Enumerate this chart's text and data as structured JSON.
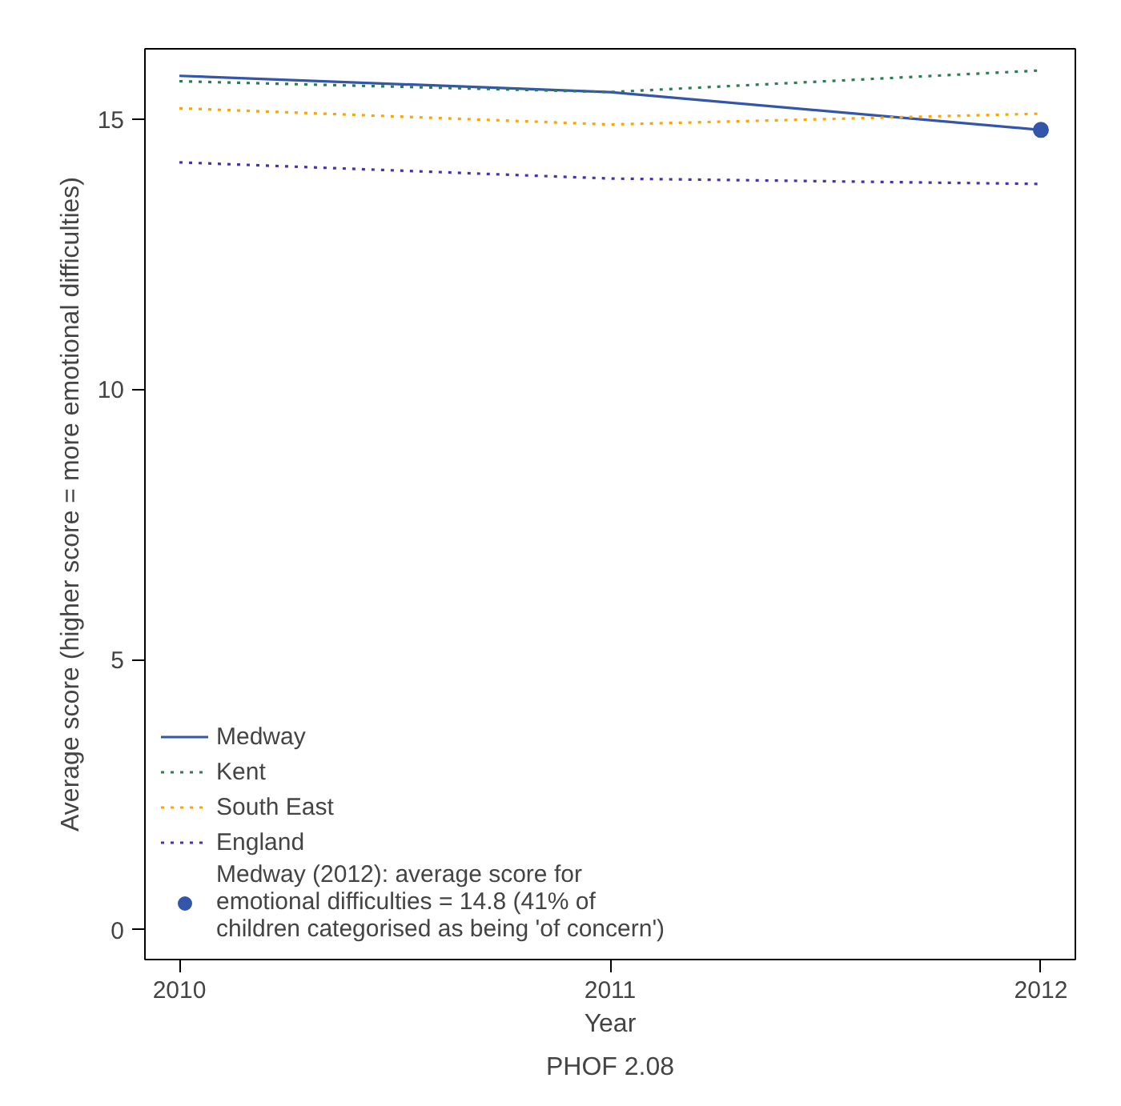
{
  "chart_data": {
    "type": "line",
    "xlabel": "Year",
    "ylabel": "Average score (higher score = more emotional difficulties)",
    "annotations": [
      "PHOF 2.08"
    ],
    "x": [
      2010,
      2011,
      2012
    ],
    "xlim": [
      2009.92,
      2012.08
    ],
    "xticks": [
      2010,
      2011,
      2012
    ],
    "ylim": [
      -0.55,
      16.3
    ],
    "yticks": [
      0,
      5,
      10,
      15
    ],
    "grid": false,
    "legend": "bottom left",
    "series": [
      {
        "name": "Medway",
        "color": "#3355aa",
        "values": [
          15.8,
          15.5,
          14.8
        ],
        "line_style": "solid"
      },
      {
        "name": "Kent",
        "color": "#2e7d52",
        "values": [
          15.7,
          15.5,
          15.9
        ],
        "line_style": "dotted"
      },
      {
        "name": "South East",
        "color": "#ffa500",
        "values": [
          15.2,
          14.9,
          15.1
        ],
        "line_style": "dotted"
      },
      {
        "name": "England",
        "color": "#4433aa",
        "values": [
          14.2,
          13.9,
          13.8
        ],
        "line_style": "dotted"
      },
      {
        "name": "Medway (2012): average score for\nemotional difficulties = 14.8 (41% of\nchildren categorised as being 'of concern')",
        "type": "scatter",
        "marker": "circle",
        "color": "#3355aa",
        "x": [
          2012
        ],
        "values": [
          14.8
        ]
      }
    ]
  }
}
